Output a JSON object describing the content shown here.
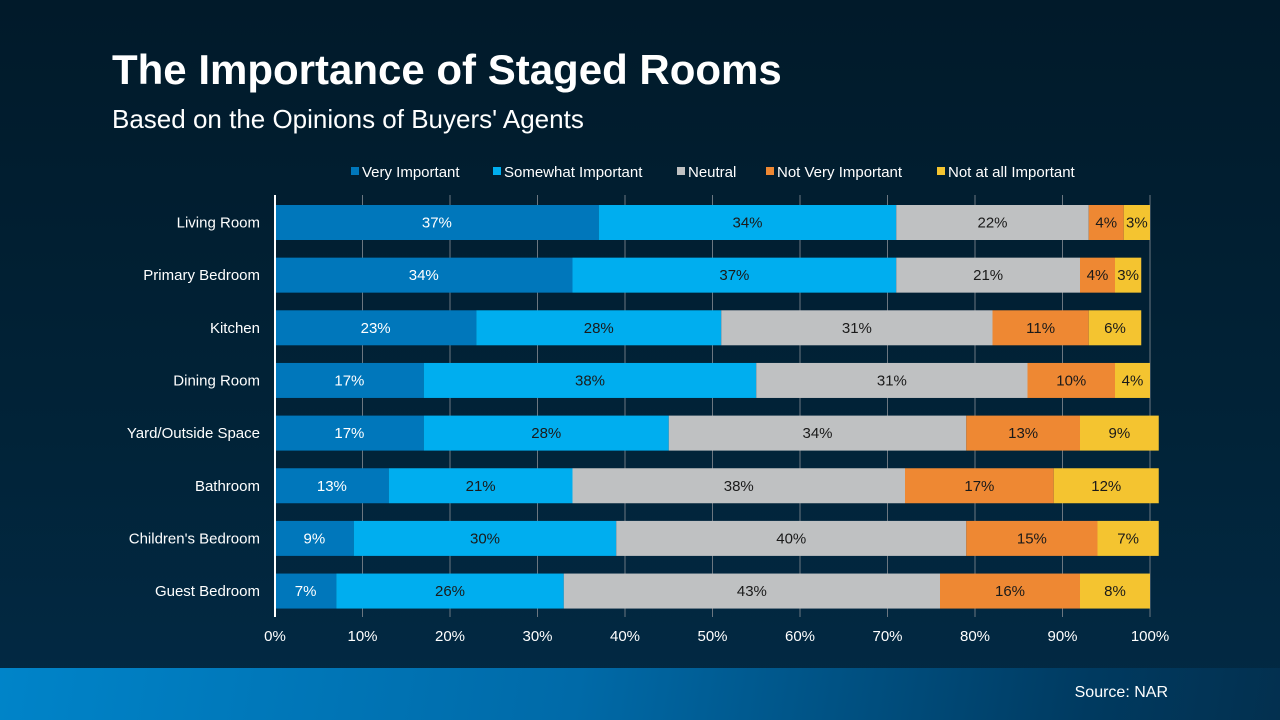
{
  "chart_data": {
    "type": "bar",
    "orientation": "horizontal",
    "stacked": true,
    "title": "The Importance of Staged Rooms",
    "subtitle": "Based on the Opinions of Buyers' Agents",
    "categories": [
      "Living Room",
      "Primary Bedroom",
      "Kitchen",
      "Dining Room",
      "Yard/Outside Space",
      "Bathroom",
      "Children's Bedroom",
      "Guest Bedroom"
    ],
    "series": [
      {
        "name": "Very Important",
        "color": "#0077bb",
        "label_color": "#ffffff",
        "values": [
          37,
          34,
          23,
          17,
          17,
          13,
          9,
          7
        ]
      },
      {
        "name": "Somewhat Important",
        "color": "#00aeef",
        "label_color": "#1a1a1a",
        "values": [
          34,
          37,
          28,
          38,
          28,
          21,
          30,
          26
        ]
      },
      {
        "name": "Neutral",
        "color": "#bfc1c2",
        "label_color": "#1a1a1a",
        "values": [
          22,
          21,
          31,
          31,
          34,
          38,
          40,
          43
        ]
      },
      {
        "name": "Not Very Important",
        "color": "#ee8833",
        "label_color": "#1a1a1a",
        "values": [
          4,
          4,
          11,
          10,
          13,
          17,
          15,
          16
        ]
      },
      {
        "name": "Not at all Important",
        "color": "#f4c430",
        "label_color": "#1a1a1a",
        "values": [
          3,
          3,
          6,
          4,
          9,
          12,
          7,
          8
        ]
      }
    ],
    "xlim": [
      0,
      100
    ],
    "x_ticks": [
      "0%",
      "10%",
      "20%",
      "30%",
      "40%",
      "50%",
      "60%",
      "70%",
      "80%",
      "90%",
      "100%"
    ],
    "grid": true,
    "legend": "top",
    "data_labels": true
  },
  "footer": {
    "source": "Source: NAR"
  }
}
